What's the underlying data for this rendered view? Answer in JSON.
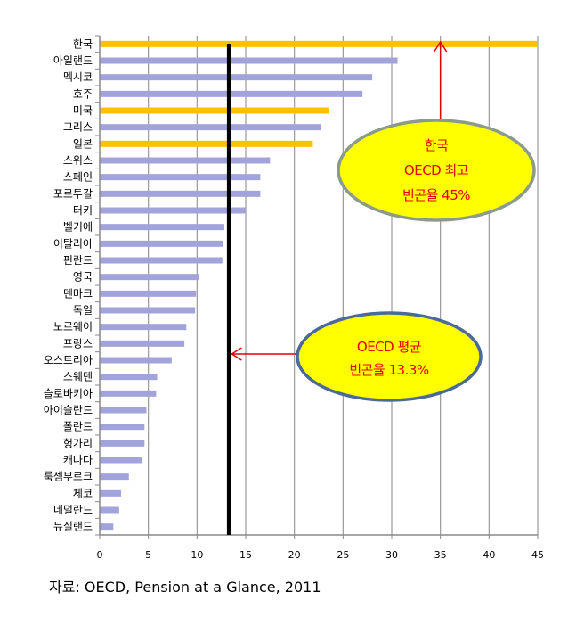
{
  "chart_data": {
    "type": "bar",
    "orientation": "horizontal",
    "categories": [
      "한국",
      "아일랜드",
      "멕시코",
      "호주",
      "미국",
      "그리스",
      "일본",
      "스위스",
      "스페인",
      "포르투갈",
      "터키",
      "벨기에",
      "이탈리아",
      "핀란드",
      "영국",
      "덴마크",
      "독일",
      "노르웨이",
      "프랑스",
      "오스트리아",
      "스웨덴",
      "슬로바키아",
      "아이슬란드",
      "폴란드",
      "헝가리",
      "캐나다",
      "룩셈부르크",
      "체코",
      "네덜란드",
      "뉴질랜드"
    ],
    "values": [
      45,
      30.6,
      28.0,
      27.0,
      23.5,
      22.7,
      21.9,
      17.5,
      16.5,
      16.5,
      15.0,
      12.8,
      12.7,
      12.6,
      10.2,
      9.9,
      9.8,
      8.9,
      8.7,
      7.4,
      5.9,
      5.8,
      4.8,
      4.6,
      4.6,
      4.3,
      3.0,
      2.2,
      2.0,
      1.4
    ],
    "highlighted": [
      "한국",
      "미국",
      "일본"
    ],
    "colors": {
      "default": "#a3a3dc",
      "highlight": "#ffc000",
      "average_line": "#000000",
      "arrow": "#e00000"
    },
    "xlim": [
      0,
      45
    ],
    "xticks": [
      0,
      5,
      10,
      15,
      20,
      25,
      30,
      35,
      40,
      45
    ],
    "grid": true,
    "average_line": 13.3,
    "annotations": [
      {
        "lines": [
          "한국",
          "OECD 최고",
          "빈곤율 45%"
        ],
        "fill": "#ffff00",
        "stroke": "#8b9b8b"
      },
      {
        "lines": [
          "OECD 평균",
          "빈곤율 13.3%"
        ],
        "fill": "#ffff00",
        "stroke": "#4a6a9a"
      }
    ]
  },
  "source": "자료: OECD, Pension at a Glance, 2011"
}
